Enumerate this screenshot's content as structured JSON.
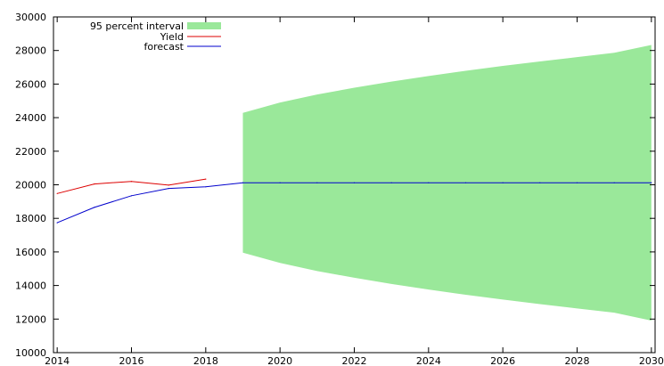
{
  "chart_data": {
    "type": "line",
    "title": "",
    "xlabel": "",
    "ylabel": "",
    "xlim": [
      2013.9,
      2030.1
    ],
    "ylim": [
      10000,
      30000
    ],
    "x_ticks": [
      2014,
      2016,
      2018,
      2020,
      2022,
      2024,
      2026,
      2028,
      2030
    ],
    "x_tick_labels": [
      "2014",
      "2016",
      "2018",
      "2020",
      "2022",
      "2024",
      "2026",
      "2028",
      "2030"
    ],
    "y_ticks": [
      10000,
      12000,
      14000,
      16000,
      18000,
      20000,
      22000,
      24000,
      26000,
      28000,
      30000
    ],
    "y_tick_labels": [
      "10000",
      "12000",
      "14000",
      "16000",
      "18000",
      "20000",
      "22000",
      "24000",
      "26000",
      "28000",
      "30000"
    ],
    "grid": false,
    "legend_position": "top-left",
    "series": [
      {
        "name": "Yield",
        "color": "#dd0000",
        "x": [
          2014,
          2015,
          2016,
          2017,
          2018
        ],
        "values": [
          19480,
          20050,
          20200,
          19980,
          20340
        ]
      },
      {
        "name": "forecast",
        "color": "#0000cc",
        "x": [
          2014,
          2015,
          2016,
          2017,
          2018,
          2019,
          2020,
          2021,
          2022,
          2023,
          2024,
          2025,
          2026,
          2027,
          2028,
          2029,
          2030
        ],
        "values": [
          17740,
          18650,
          19350,
          19780,
          19880,
          20120,
          20120,
          20120,
          20120,
          20120,
          20120,
          20120,
          20120,
          20120,
          20120,
          20120,
          20120
        ]
      }
    ],
    "interval": {
      "name": "95 percent interval",
      "color": "#9ae89a",
      "x": [
        2019,
        2020,
        2021,
        2022,
        2023,
        2024,
        2025,
        2026,
        2027,
        2028,
        2029,
        2030
      ],
      "upper": [
        24280,
        24900,
        25380,
        25780,
        26150,
        26480,
        26790,
        27080,
        27350,
        27610,
        27860,
        28330
      ],
      "lower": [
        15960,
        15340,
        14860,
        14460,
        14090,
        13760,
        13450,
        13160,
        12890,
        12630,
        12380,
        11910
      ]
    }
  }
}
